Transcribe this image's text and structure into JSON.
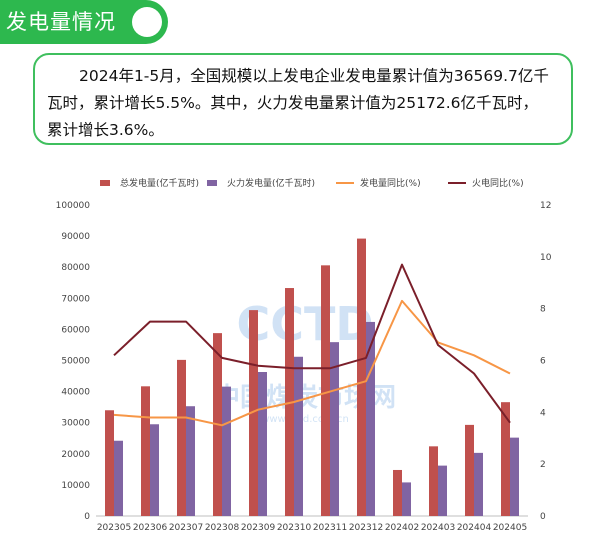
{
  "header": {
    "title": "发电量情况"
  },
  "summary": {
    "lines": [
      "2024年1-5月，全国规模以上发电企业发电量累计值为36569.7亿千",
      "瓦时，累计增长5.5%。其中，火力发电量累计值为25172.6亿千瓦时，",
      "累计增长3.6%。"
    ]
  },
  "colors": {
    "header_bg": "#2db84e",
    "box_border": "#3fbf5e",
    "total_bar": "#c0504d",
    "thermal_bar": "#8064a2",
    "total_yoy_line": "#f79646",
    "thermal_yoy_line": "#7b1f2a"
  },
  "chart_data": {
    "type": "bar",
    "categories": [
      "202305",
      "202306",
      "202307",
      "202308",
      "202309",
      "202310",
      "202311",
      "202312",
      "202402",
      "202403",
      "202404",
      "202405"
    ],
    "series": [
      {
        "name": "总发电量(亿千瓦时)",
        "type": "bar",
        "axis": "left",
        "color": "#c0504d",
        "values": [
          34000,
          41700,
          50200,
          58800,
          66200,
          73300,
          80600,
          89200,
          14800,
          22400,
          29300,
          36600
        ]
      },
      {
        "name": "火力发电量(亿千瓦时)",
        "type": "bar",
        "axis": "left",
        "color": "#8064a2",
        "values": [
          24200,
          29500,
          35300,
          41600,
          46300,
          51200,
          55900,
          62400,
          10800,
          16200,
          20300,
          25200
        ]
      },
      {
        "name": "发电量同比(%)",
        "type": "line",
        "axis": "right",
        "color": "#f79646",
        "values": [
          3.9,
          3.8,
          3.8,
          3.5,
          4.1,
          4.4,
          4.8,
          5.2,
          8.3,
          6.7,
          6.2,
          5.5
        ]
      },
      {
        "name": "火电同比(%)",
        "type": "line",
        "axis": "right",
        "color": "#7b1f2a",
        "values": [
          6.2,
          7.5,
          7.5,
          6.1,
          5.8,
          5.7,
          5.7,
          6.1,
          9.7,
          6.6,
          5.5,
          3.6
        ]
      }
    ],
    "y_left": {
      "min": 0,
      "max": 100000,
      "ticks": [
        "0",
        "10000",
        "20000",
        "30000",
        "40000",
        "50000",
        "60000",
        "70000",
        "80000",
        "90000",
        "100000"
      ]
    },
    "y_right": {
      "min": 0,
      "max": 12,
      "ticks": [
        "0",
        "2",
        "4",
        "6",
        "8",
        "10",
        "12"
      ]
    },
    "legend_position": "top",
    "watermark": [
      "CCTD",
      "中国煤炭市场网",
      "www.cctd.com.cn"
    ]
  }
}
